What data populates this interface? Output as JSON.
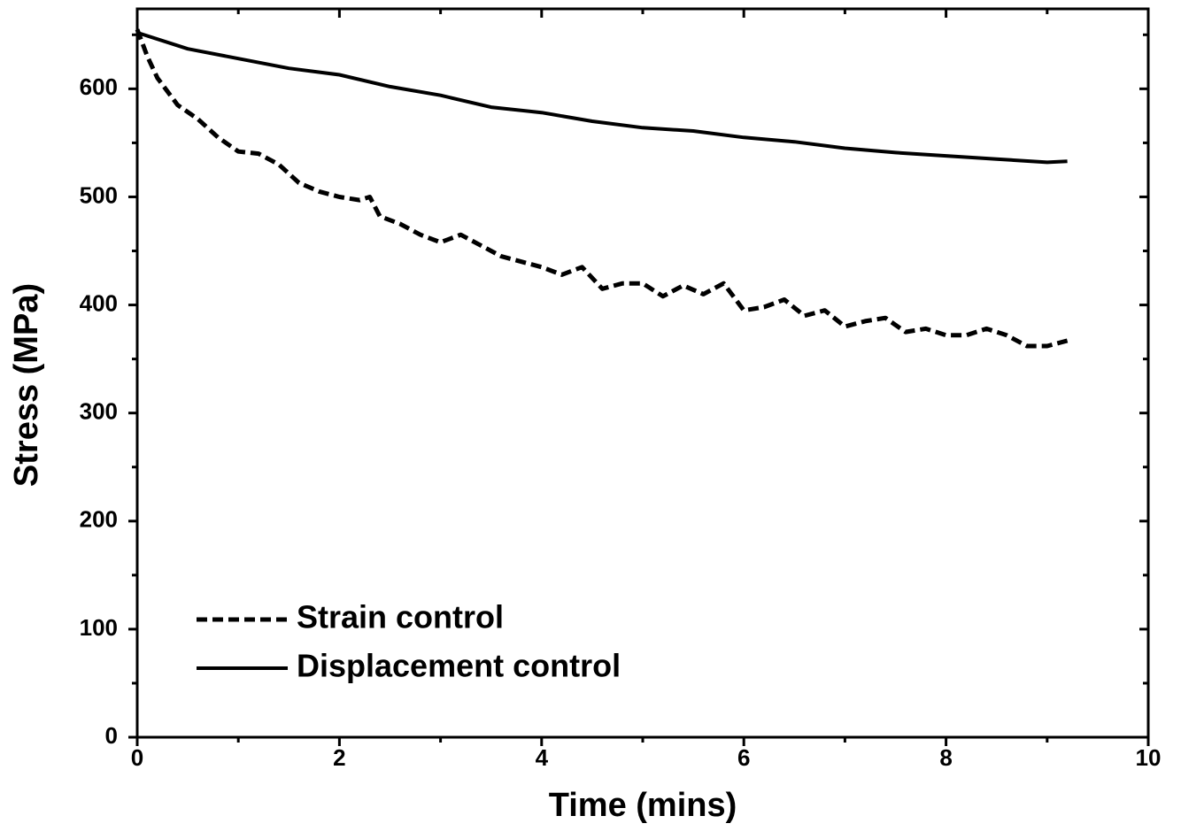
{
  "chart_data": {
    "type": "line",
    "xlabel": "Time (mins)",
    "ylabel": "Stress (MPa)",
    "xlim": [
      0,
      10
    ],
    "ylim": [
      0,
      674
    ],
    "xticks": [
      0,
      2,
      4,
      6,
      8,
      10
    ],
    "yticks": [
      0,
      100,
      200,
      300,
      400,
      500,
      600
    ],
    "xminorticks": [
      1,
      3,
      5,
      7,
      9
    ],
    "yminorticks": [
      50,
      150,
      250,
      350,
      450,
      550,
      650
    ],
    "grid": false,
    "legend": "lower left",
    "series": [
      {
        "name": "Strain control",
        "color": "#000000",
        "dash": true,
        "x": [
          0,
          0.1,
          0.2,
          0.4,
          0.6,
          0.8,
          1.0,
          1.2,
          1.4,
          1.6,
          1.8,
          2.0,
          2.2,
          2.3,
          2.4,
          2.6,
          2.8,
          3.0,
          3.2,
          3.4,
          3.6,
          3.8,
          4.0,
          4.2,
          4.4,
          4.6,
          4.8,
          5.0,
          5.2,
          5.4,
          5.6,
          5.8,
          6.0,
          6.2,
          6.4,
          6.6,
          6.8,
          7.0,
          7.2,
          7.4,
          7.6,
          7.8,
          8.0,
          8.2,
          8.4,
          8.6,
          8.8,
          9.0,
          9.2
        ],
        "values": [
          655,
          630,
          610,
          585,
          572,
          555,
          542,
          540,
          530,
          513,
          505,
          500,
          497,
          500,
          482,
          475,
          465,
          458,
          465,
          455,
          445,
          440,
          435,
          428,
          435,
          415,
          420,
          420,
          408,
          418,
          410,
          420,
          395,
          398,
          405,
          390,
          395,
          380,
          385,
          388,
          375,
          378,
          372,
          372,
          378,
          372,
          362,
          362,
          367
        ]
      },
      {
        "name": "Displacement control",
        "color": "#000000",
        "dash": false,
        "x": [
          0,
          0.5,
          1.0,
          1.5,
          2.0,
          2.5,
          3.0,
          3.5,
          4.0,
          4.5,
          5.0,
          5.5,
          6.0,
          6.5,
          7.0,
          7.5,
          8.0,
          8.5,
          9.0,
          9.2
        ],
        "values": [
          652,
          637,
          628,
          619,
          613,
          602,
          594,
          583,
          578,
          570,
          564,
          561,
          555,
          551,
          545,
          541,
          538,
          535,
          532,
          533
        ]
      }
    ]
  }
}
